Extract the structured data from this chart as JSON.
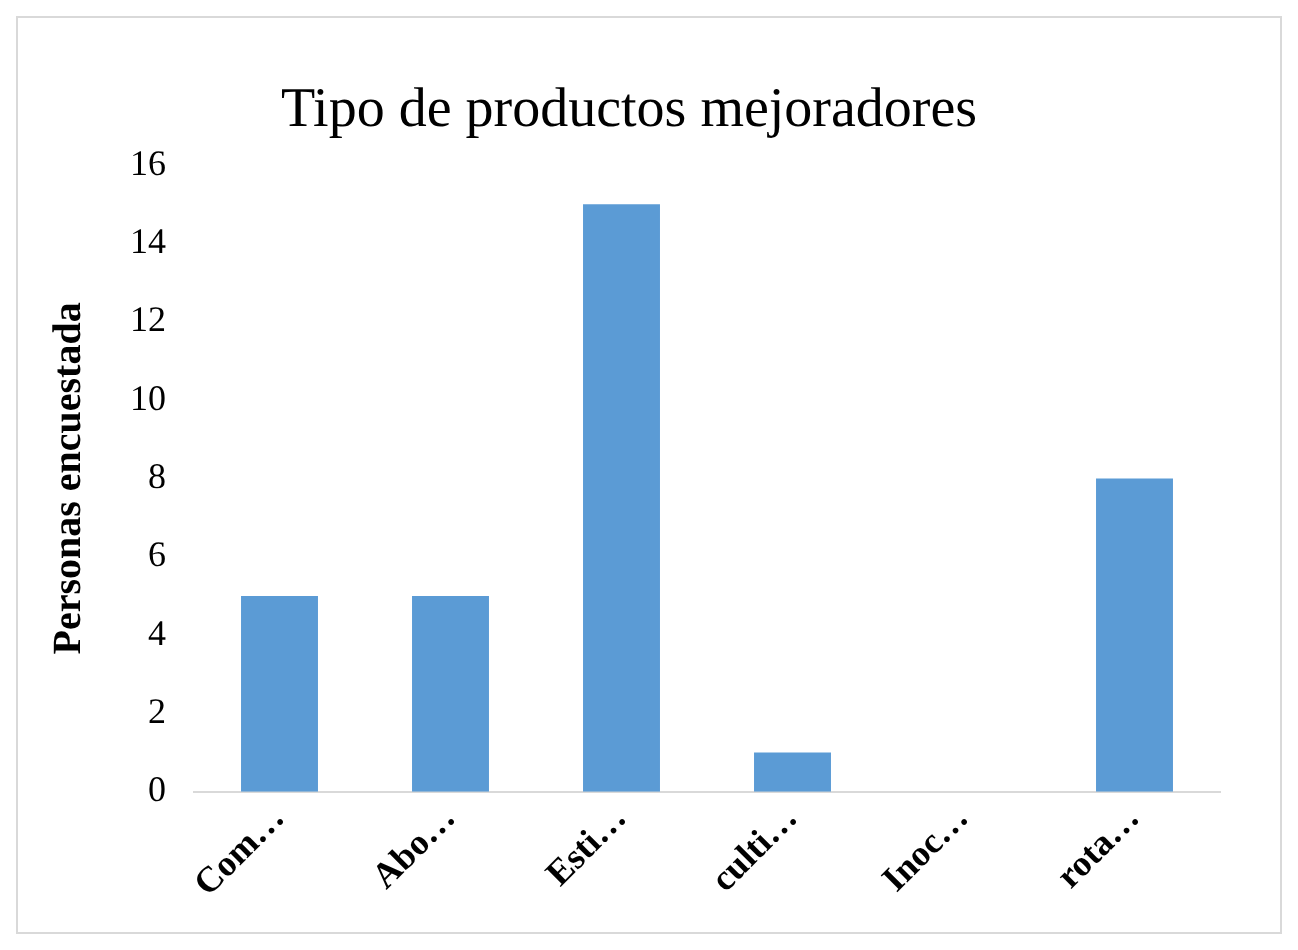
{
  "chart_data": {
    "type": "bar",
    "title": "Tipo de productos mejoradores",
    "ylabel": "Personas encuestada",
    "categories": [
      "Com…",
      "Abo…",
      "Esti…",
      "culti…",
      "Inoc…",
      "rota…"
    ],
    "values": [
      5,
      5,
      15,
      1,
      0,
      8
    ],
    "color": "#5b9bd5",
    "ylim": [
      0,
      16
    ],
    "yticks": [
      0,
      2,
      4,
      6,
      8,
      10,
      12,
      14,
      16
    ],
    "grid": false,
    "legend": false
  }
}
